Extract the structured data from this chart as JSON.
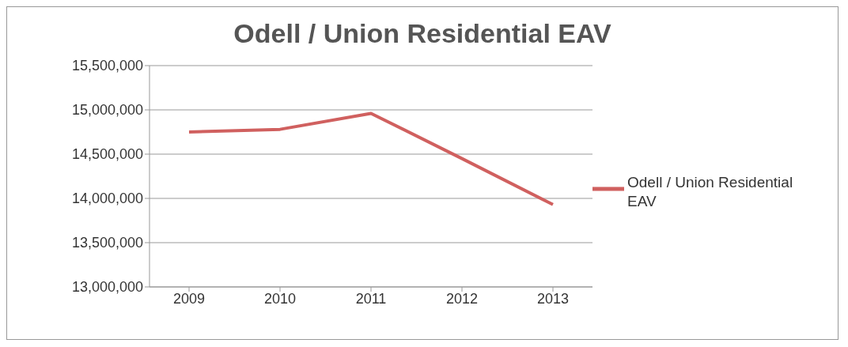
{
  "chart_data": {
    "type": "line",
    "title": "Odell / Union Residential EAV",
    "categories": [
      "2009",
      "2010",
      "2011",
      "2012",
      "2013"
    ],
    "series": [
      {
        "name": "Odell / Union Residential EAV",
        "color": "#d0605f",
        "values": [
          14750000,
          14780000,
          14960000,
          14450000,
          13930000
        ]
      }
    ],
    "ylim": [
      13000000,
      15500000
    ],
    "yticks": [
      {
        "value": 13000000,
        "label": "13,000,000"
      },
      {
        "value": 13500000,
        "label": "13,500,000"
      },
      {
        "value": 14000000,
        "label": "14,000,000"
      },
      {
        "value": 14500000,
        "label": "14,500,000"
      },
      {
        "value": 15000000,
        "label": "15,000,000"
      },
      {
        "value": 15500000,
        "label": "15,500,000"
      }
    ],
    "grid": "y",
    "legend": "right",
    "marker": "none"
  }
}
